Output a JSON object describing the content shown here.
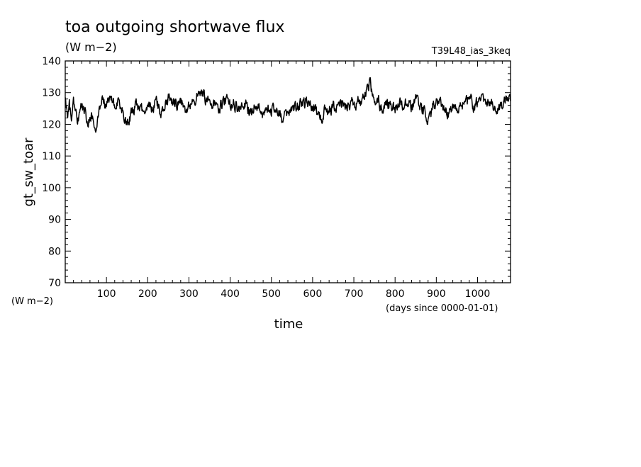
{
  "chart_data": {
    "type": "line",
    "title": "toa outgoing shortwave flux",
    "title_units": "(W m−2)",
    "run_label": "T39L48_ias_3keq",
    "xlabel": "time",
    "xunits": "(days since 0000-01-01)",
    "ylabel": "gt_sw_toar",
    "yunits": "(W m−2)",
    "xlim": [
      0,
      1080
    ],
    "ylim": [
      70,
      140
    ],
    "x_ticks": [
      100,
      200,
      300,
      400,
      500,
      600,
      700,
      800,
      900,
      1000
    ],
    "y_ticks": [
      70,
      80,
      90,
      100,
      110,
      120,
      130,
      140
    ],
    "grid": false,
    "series": [
      {
        "color": "#000000",
        "anchors": [
          [
            0,
            128
          ],
          [
            5,
            123
          ],
          [
            10,
            126
          ],
          [
            15,
            122
          ],
          [
            20,
            127
          ],
          [
            25,
            123
          ],
          [
            30,
            121
          ],
          [
            40,
            126
          ],
          [
            50,
            124
          ],
          [
            55,
            119
          ],
          [
            60,
            123
          ],
          [
            70,
            121
          ],
          [
            75,
            119
          ],
          [
            80,
            124
          ],
          [
            90,
            127
          ],
          [
            100,
            126
          ],
          [
            105,
            129
          ],
          [
            110,
            128
          ],
          [
            120,
            126
          ],
          [
            130,
            127
          ],
          [
            140,
            124
          ],
          [
            150,
            121
          ],
          [
            160,
            123
          ],
          [
            170,
            126
          ],
          [
            180,
            124
          ],
          [
            190,
            125
          ],
          [
            200,
            126
          ],
          [
            210,
            125
          ],
          [
            220,
            127
          ],
          [
            230,
            124
          ],
          [
            240,
            126
          ],
          [
            250,
            128
          ],
          [
            260,
            127
          ],
          [
            270,
            126
          ],
          [
            280,
            127
          ],
          [
            290,
            125
          ],
          [
            300,
            126
          ],
          [
            310,
            128
          ],
          [
            320,
            129
          ],
          [
            330,
            130
          ],
          [
            340,
            128
          ],
          [
            350,
            126
          ],
          [
            360,
            127
          ],
          [
            370,
            125
          ],
          [
            380,
            127
          ],
          [
            390,
            128
          ],
          [
            400,
            126
          ],
          [
            410,
            127
          ],
          [
            420,
            125
          ],
          [
            430,
            127
          ],
          [
            440,
            126
          ],
          [
            450,
            124
          ],
          [
            460,
            126
          ],
          [
            470,
            125
          ],
          [
            480,
            123
          ],
          [
            490,
            125
          ],
          [
            500,
            124
          ],
          [
            510,
            126
          ],
          [
            520,
            123
          ],
          [
            530,
            121
          ],
          [
            540,
            124
          ],
          [
            550,
            126
          ],
          [
            560,
            125
          ],
          [
            570,
            127
          ],
          [
            580,
            126
          ],
          [
            590,
            128
          ],
          [
            600,
            126
          ],
          [
            610,
            124
          ],
          [
            620,
            122
          ],
          [
            630,
            125
          ],
          [
            640,
            124
          ],
          [
            650,
            126
          ],
          [
            660,
            125
          ],
          [
            670,
            127
          ],
          [
            680,
            126
          ],
          [
            690,
            127
          ],
          [
            700,
            126
          ],
          [
            710,
            128
          ],
          [
            720,
            127
          ],
          [
            730,
            130
          ],
          [
            740,
            133
          ],
          [
            745,
            129
          ],
          [
            750,
            126
          ],
          [
            760,
            127
          ],
          [
            770,
            125
          ],
          [
            780,
            127
          ],
          [
            790,
            126
          ],
          [
            800,
            125
          ],
          [
            810,
            127
          ],
          [
            820,
            126
          ],
          [
            830,
            127
          ],
          [
            840,
            125
          ],
          [
            850,
            127
          ],
          [
            860,
            126
          ],
          [
            870,
            124
          ],
          [
            880,
            122
          ],
          [
            890,
            125
          ],
          [
            900,
            127
          ],
          [
            910,
            126
          ],
          [
            920,
            125
          ],
          [
            930,
            123
          ],
          [
            940,
            126
          ],
          [
            950,
            124
          ],
          [
            960,
            126
          ],
          [
            970,
            127
          ],
          [
            980,
            128
          ],
          [
            990,
            126
          ],
          [
            1000,
            127
          ],
          [
            1010,
            128
          ],
          [
            1020,
            126
          ],
          [
            1030,
            127
          ],
          [
            1040,
            126
          ],
          [
            1050,
            125
          ],
          [
            1060,
            126
          ],
          [
            1070,
            130
          ],
          [
            1080,
            126
          ]
        ]
      }
    ]
  }
}
